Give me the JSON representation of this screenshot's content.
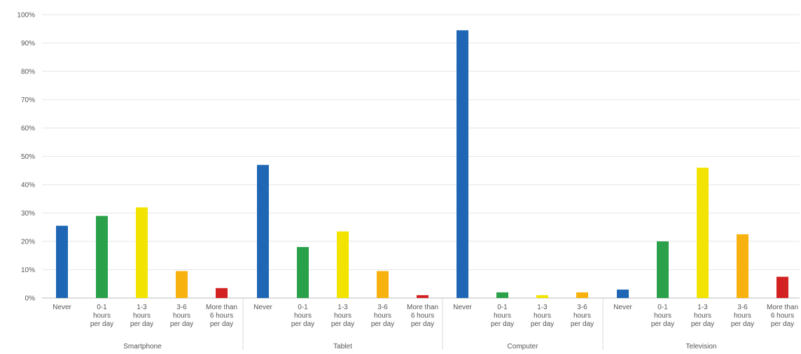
{
  "chart_data": {
    "type": "bar",
    "y_ticks": [
      "0%",
      "10%",
      "20%",
      "30%",
      "40%",
      "50%",
      "60%",
      "70%",
      "80%",
      "90%",
      "100%"
    ],
    "ylim": [
      0,
      100
    ],
    "grid": true,
    "colors": {
      "Never": "#1f67b5",
      "0-1 hours per day": "#2aa04a",
      "1-3 hours per day": "#f2e400",
      "3-6 hours per day": "#f7b20f",
      "More than 6 hours per day": "#d32222"
    },
    "groups": [
      {
        "name": "Smartphone",
        "bars": [
          {
            "label": "Never",
            "value": 25.5
          },
          {
            "label": "0-1 hours per day",
            "value": 29
          },
          {
            "label": "1-3 hours per day",
            "value": 32
          },
          {
            "label": "3-6 hours per day",
            "value": 9.5
          },
          {
            "label": "More than 6 hours per day",
            "value": 3.5
          }
        ]
      },
      {
        "name": "Tablet",
        "bars": [
          {
            "label": "Never",
            "value": 47
          },
          {
            "label": "0-1 hours per day",
            "value": 18
          },
          {
            "label": "1-3 hours per day",
            "value": 23.5
          },
          {
            "label": "3-6 hours per day",
            "value": 9.5
          },
          {
            "label": "More than 6 hours per day",
            "value": 1
          }
        ]
      },
      {
        "name": "Computer",
        "bars": [
          {
            "label": "Never",
            "value": 94.5
          },
          {
            "label": "0-1 hours per day",
            "value": 2
          },
          {
            "label": "1-3 hours per day",
            "value": 1
          },
          {
            "label": "3-6 hours per day",
            "value": 2
          }
        ]
      },
      {
        "name": "Television",
        "bars": [
          {
            "label": "Never",
            "value": 3
          },
          {
            "label": "0-1 hours per day",
            "value": 20
          },
          {
            "label": "1-3 hours per day",
            "value": 46
          },
          {
            "label": "3-6 hours per day",
            "value": 22.5
          },
          {
            "label": "More than 6 hours per day",
            "value": 7.5
          }
        ]
      }
    ]
  },
  "x_labels": {
    "Never": [
      "Never"
    ],
    "0-1 hours per day": [
      "0-1",
      "hours",
      "per day"
    ],
    "1-3 hours per day": [
      "1-3",
      "hours",
      "per day"
    ],
    "3-6 hours per day": [
      "3-6",
      "hours",
      "per day"
    ],
    "More than 6 hours per day": [
      "More than",
      "6 hours",
      "per day"
    ]
  }
}
